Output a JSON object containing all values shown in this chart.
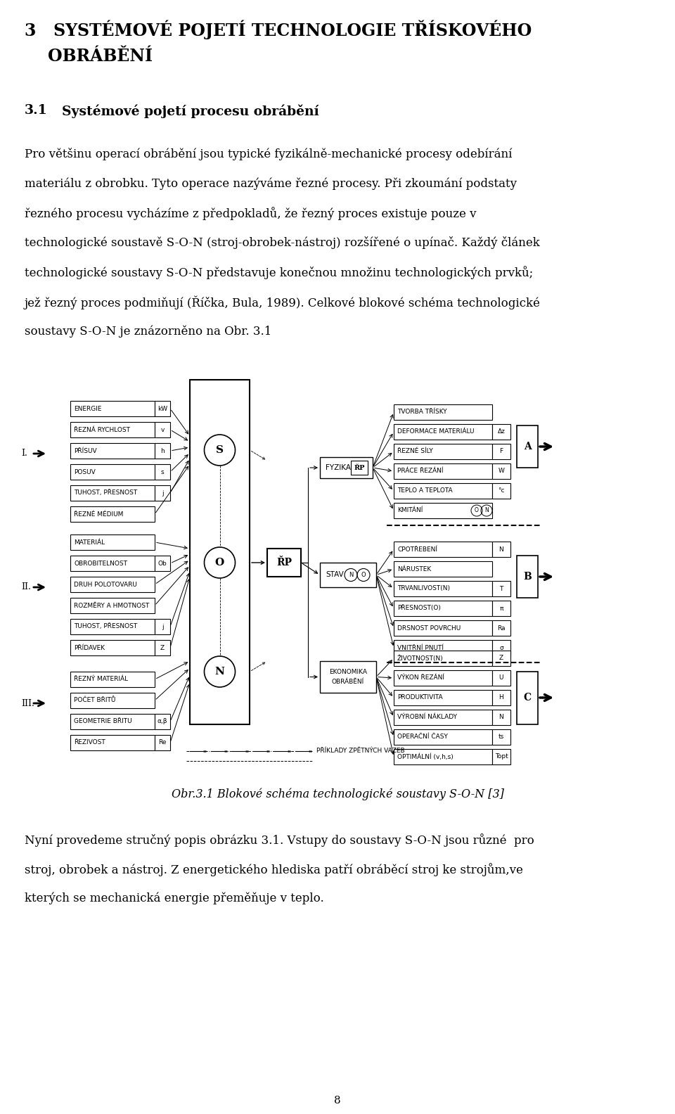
{
  "bg_color": "#ffffff",
  "page_width": 9.6,
  "page_height": 15.84,
  "chapter_title_line1": "3   SYSTÉMOVÉ POJETÍ TECHNOLOGIE TŘÍSKOVÉHO",
  "chapter_title_line2": "    OBRÁBĚNÍ",
  "section_number": "3.1",
  "section_title": "Systémové pojetí procesu obrábění",
  "para1_lines": [
    "Pro většinu operací obrábění jsou typické fyzikálně-mechanické procesy odebírání",
    "materiálu z obrobku. Tyto operace nazýváme řezné procesy. Při zkoumání podstaty",
    "řezného procesu vycházíme z předpokladů, že řezný proces existuje pouze v",
    "technologické soustavě S-O-N (stroj-obrobek-nástroj) rozšířené o upínač. Každý článek",
    "technologické soustavy S-O-N představuje konečnou množinu technologických prvků;",
    "jež řezný proces podmiňují (Říčka, Bula, 1989). Celkové blokové schéma technologické",
    "soustavy S-O-N je znázorněno na Obr. 3.1"
  ],
  "fig_caption": "Obr.3.1 Blokové schéma technologické soustavy S-O-N [3]",
  "para2_lines": [
    "Nyní provedeme stručný popis obrázku 3.1. Vstupy do soustavy S-O-N jsou různé  pro",
    "stroj, obrobek a nástroj. Z energetického hlediska patří obráběcí stroj ke strojům,ve",
    "kterých se mechanická energie přeměňuje v teplo."
  ],
  "page_number": "8",
  "group1": [
    [
      "ENERGIE",
      "kW"
    ],
    [
      "ŘEZNÁ RYCHLOST",
      "v"
    ],
    [
      "PŘÍSUV",
      "h"
    ],
    [
      "POSUV",
      "s"
    ],
    [
      "TUHOST, PŘESNOST",
      "j"
    ],
    [
      "ŘEZNÉ MÉDIUM",
      ""
    ]
  ],
  "group2": [
    [
      "MATERIÁL",
      ""
    ],
    [
      "OBROBITELNOST",
      "Ob"
    ],
    [
      "DRUH POLOTOVARU",
      ""
    ],
    [
      "ROZMĚRY A HMOTNOST",
      ""
    ],
    [
      "TUHOST, PŘESNOST",
      "j"
    ],
    [
      "PŘÍDAVEK",
      "Z"
    ]
  ],
  "group3": [
    [
      "ŘEZNÝ MATERIÁL",
      ""
    ],
    [
      "POČET BŘITŮ",
      ""
    ],
    [
      "GEOMETRIE BŘITU",
      "α,β"
    ],
    [
      "ŘEZIVOST",
      "Re"
    ]
  ],
  "group_a": [
    [
      "TVORBA TŘÍSKY",
      ""
    ],
    [
      "DEFORMACE MATERIÁLU",
      "Δz"
    ],
    [
      "ŘEZNÉ SÍLY",
      "F"
    ],
    [
      "PRÁCE ŘEZÁNÍ",
      "W"
    ],
    [
      "TEPLO A TEPLOTA",
      "°c"
    ],
    [
      "KMITÁNÍ",
      "ON"
    ]
  ],
  "group_b": [
    [
      "CPOTŘEBENÍ",
      "N"
    ],
    [
      "NÁRUSTEK",
      ""
    ],
    [
      "TRVANLIVOST(N)",
      "T"
    ],
    [
      "PŘESNOST(O)",
      "π"
    ],
    [
      "DRSNOST POVRCHU",
      "Ra"
    ],
    [
      "VNITŘNÍ PNUTÍ",
      "σ"
    ]
  ],
  "group_c": [
    [
      "ŽIVOTNOST(N)",
      "Z"
    ],
    [
      "VÝKON ŘEZÁNÍ",
      "U"
    ],
    [
      "PRODUKTIVITA",
      "H"
    ],
    [
      "VÝROBNÍ NÁKLADY",
      "N"
    ],
    [
      "OPERAČNÍ ČASY",
      "ts"
    ],
    [
      "OPTIMÁLNÍ (v,h,s)",
      "Topt"
    ]
  ]
}
